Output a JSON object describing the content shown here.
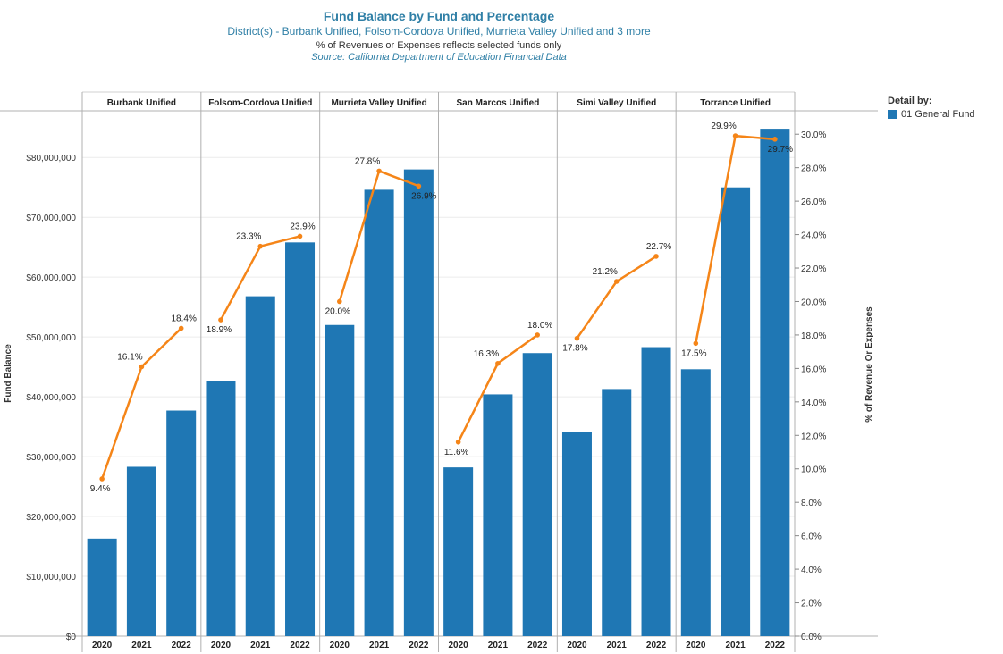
{
  "header": {
    "title": "Fund Balance by Fund and Percentage",
    "subtitle": "District(s) - Burbank Unified, Folsom-Cordova Unified, Murrieta Valley Unified and 3 more",
    "note": "% of Revenues or Expenses reflects selected funds only",
    "source": "Source: California Department of Education Financial Data"
  },
  "legend": {
    "title": "Detail by:",
    "items": [
      {
        "label": "01 General Fund",
        "color": "#1f77b4"
      }
    ]
  },
  "chart_data": {
    "type": "bar",
    "panels": [
      {
        "name": "Burbank Unified",
        "years": [
          "2020",
          "2021",
          "2022"
        ],
        "fund_balance": [
          16300000,
          28300000,
          37700000
        ],
        "pct": [
          9.4,
          16.1,
          18.4
        ],
        "pct_labels": [
          "9.4%",
          "16.1%",
          "18.4%"
        ]
      },
      {
        "name": "Folsom-Cordova Unified",
        "years": [
          "2020",
          "2021",
          "2022"
        ],
        "fund_balance": [
          42600000,
          56800000,
          65800000
        ],
        "pct": [
          18.9,
          23.3,
          23.9
        ],
        "pct_labels": [
          "18.9%",
          "23.3%",
          "23.9%"
        ]
      },
      {
        "name": "Murrieta Valley Unified",
        "years": [
          "2020",
          "2021",
          "2022"
        ],
        "fund_balance": [
          52000000,
          74600000,
          78000000
        ],
        "pct": [
          20.0,
          27.8,
          26.9
        ],
        "pct_labels": [
          "20.0%",
          "27.8%",
          "26.9%"
        ]
      },
      {
        "name": "San Marcos Unified",
        "years": [
          "2020",
          "2021",
          "2022"
        ],
        "fund_balance": [
          28200000,
          40400000,
          47300000
        ],
        "pct": [
          11.6,
          16.3,
          18.0
        ],
        "pct_labels": [
          "11.6%",
          "16.3%",
          "18.0%"
        ]
      },
      {
        "name": "Simi Valley Unified",
        "years": [
          "2020",
          "2021",
          "2022"
        ],
        "fund_balance": [
          34100000,
          41300000,
          48300000
        ],
        "pct": [
          17.8,
          21.2,
          22.7
        ],
        "pct_labels": [
          "17.8%",
          "21.2%",
          "22.7%"
        ]
      },
      {
        "name": "Torrance Unified",
        "years": [
          "2020",
          "2021",
          "2022"
        ],
        "fund_balance": [
          44600000,
          75000000,
          84800000
        ],
        "pct": [
          17.5,
          29.9,
          29.7
        ],
        "pct_labels": [
          "17.5%",
          "29.9%",
          "29.7%"
        ]
      }
    ],
    "ylabel": "Fund Balance",
    "y2label": "% of Revenue Or Expenses",
    "ylim": [
      0,
      87800000
    ],
    "y2lim": [
      0,
      31.4
    ],
    "yticks": [
      0,
      10000000,
      20000000,
      30000000,
      40000000,
      50000000,
      60000000,
      70000000,
      80000000
    ],
    "ytick_labels": [
      "$0",
      "$10,000,000",
      "$20,000,000",
      "$30,000,000",
      "$40,000,000",
      "$50,000,000",
      "$60,000,000",
      "$70,000,000",
      "$80,000,000"
    ],
    "y2ticks": [
      0,
      2,
      4,
      6,
      8,
      10,
      12,
      14,
      16,
      18,
      20,
      22,
      24,
      26,
      28,
      30
    ],
    "y2tick_labels": [
      "0.0%",
      "2.0%",
      "4.0%",
      "6.0%",
      "8.0%",
      "10.0%",
      "12.0%",
      "14.0%",
      "16.0%",
      "18.0%",
      "20.0%",
      "22.0%",
      "24.0%",
      "26.0%",
      "28.0%",
      "30.0%"
    ],
    "bar_color": "#1f77b4",
    "line_color": "#f58518",
    "grid": true,
    "legend_position": "top-right"
  }
}
